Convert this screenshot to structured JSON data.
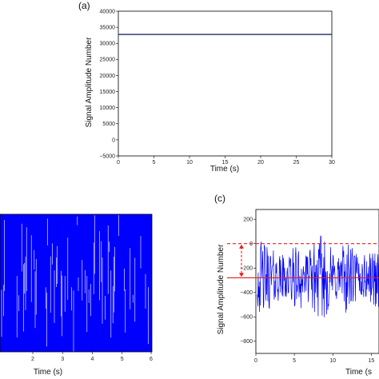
{
  "chart_data": [
    {
      "panel_label": "(a)",
      "type": "line",
      "xlabel": "Time (s)",
      "ylabel": "Signal Amplitude Number",
      "xlim": [
        0,
        30
      ],
      "ylim": [
        -5000,
        40000
      ],
      "xticks": [
        0,
        5,
        10,
        15,
        20,
        25,
        30
      ],
      "yticks": [
        -5000,
        0,
        5000,
        10000,
        15000,
        20000,
        25000,
        30000,
        35000,
        40000
      ],
      "ytick_labels": [
        "−5000",
        "0",
        "5000",
        "10000",
        "15000",
        "20000",
        "25000",
        "30000",
        "35000",
        "40000"
      ],
      "series": [
        {
          "x": [
            0,
            30
          ],
          "y": [
            32768,
            32768
          ],
          "color": "#1f2a6b"
        }
      ]
    },
    {
      "panel_label": "",
      "type": "line",
      "xlabel": "Time (s)",
      "xlim": [
        0.9,
        6
      ],
      "xticks": [
        2,
        3,
        4,
        5,
        6
      ],
      "series": [
        {
          "description_values": "dense saturated oscillation",
          "x": [
            1,
            6
          ],
          "y": [
            1,
            -1
          ],
          "color": "#0000ff"
        }
      ]
    },
    {
      "panel_label": "(c)",
      "type": "line",
      "xlabel": "Time (s",
      "ylabel": "Signal Amplitude Number",
      "xlim": [
        0,
        16
      ],
      "ylim": [
        -900,
        280
      ],
      "xticks": [
        0,
        5,
        10,
        15
      ],
      "yticks": [
        -800,
        -600,
        -400,
        -200,
        0,
        200
      ],
      "ytick_labels": [
        "−800",
        "−600",
        "−400",
        "−200",
        "0",
        "200"
      ],
      "reference_lines": [
        0,
        -280
      ],
      "series": [
        {
          "mean": -280,
          "amplitude": 280,
          "color": "#0000ff"
        }
      ]
    }
  ]
}
